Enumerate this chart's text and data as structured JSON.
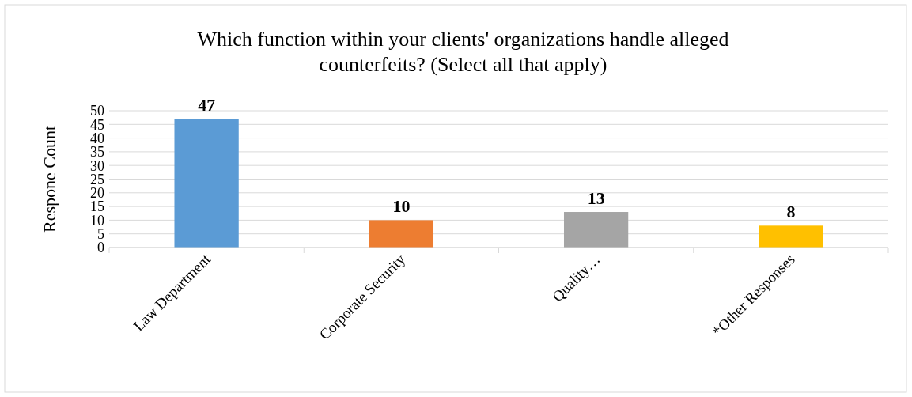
{
  "chart_data": {
    "type": "bar",
    "title": "Which function within your clients' organizations handle alleged counterfeits? (Select all that apply)",
    "ylabel": "Respone Count",
    "categories": [
      "Law Department",
      "Corporate Security",
      "Quality…",
      "*Other Responses"
    ],
    "values": [
      47,
      10,
      13,
      8
    ],
    "colors": [
      "#5b9bd5",
      "#ed7d31",
      "#a5a5a5",
      "#ffc000"
    ],
    "ylim": [
      0,
      50
    ],
    "yticks": [
      0,
      5,
      10,
      15,
      20,
      25,
      30,
      35,
      40,
      45,
      50
    ],
    "grid": "y",
    "data_labels": true
  }
}
